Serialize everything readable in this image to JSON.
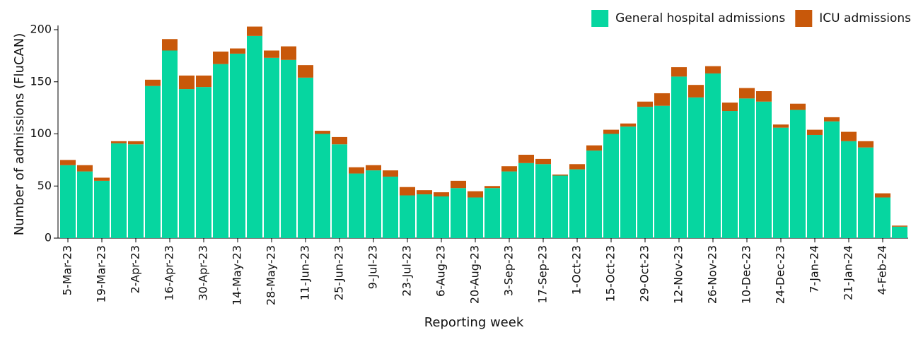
{
  "chart_data": {
    "type": "stacked_bar",
    "y_label": "Number of admissions (FluCAN)",
    "x_label": "Reporting week",
    "categories": [
      "5-Mar-23",
      null,
      "19-Mar-23",
      null,
      "2-Apr-23",
      null,
      "16-Apr-23",
      null,
      "30-Apr-23",
      null,
      "14-May-23",
      null,
      "28-May-23",
      null,
      "11-Jun-23",
      null,
      "25-Jun-23",
      null,
      "9-Jul-23",
      null,
      "23-Jul-23",
      null,
      "6-Aug-23",
      null,
      "20-Aug-23",
      null,
      "3-Sep-23",
      null,
      "17-Sep-23",
      null,
      "1-Oct-23",
      null,
      "15-Oct-23",
      null,
      "29-Oct-23",
      null,
      "12-Nov-23",
      null,
      "26-Nov-23",
      null,
      "10-Dec-23",
      null,
      "24-Dec-23",
      null,
      "7-Jan-24",
      null,
      "21-Jan-24",
      null,
      "4-Feb-24",
      null
    ],
    "series": [
      {
        "name": "General hospital admissions",
        "color": "#06d6a0",
        "values": [
          70,
          64,
          55,
          91,
          90,
          146,
          180,
          143,
          145,
          167,
          177,
          194,
          173,
          171,
          154,
          100,
          90,
          62,
          65,
          59,
          41,
          42,
          40,
          48,
          39,
          48,
          64,
          72,
          71,
          60,
          66,
          84,
          100,
          107,
          126,
          127,
          155,
          135,
          158,
          122,
          134,
          131,
          106,
          123,
          99,
          112,
          93,
          87,
          39,
          11
        ]
      },
      {
        "name": "ICU admissions",
        "color": "#c8580a",
        "values": [
          5,
          6,
          3,
          2,
          3,
          6,
          11,
          13,
          11,
          12,
          5,
          9,
          7,
          13,
          12,
          3,
          7,
          6,
          5,
          6,
          8,
          4,
          4,
          7,
          6,
          2,
          5,
          8,
          5,
          1,
          5,
          5,
          4,
          3,
          5,
          12,
          9,
          12,
          7,
          8,
          10,
          10,
          3,
          6,
          5,
          4,
          9,
          6,
          4,
          1
        ]
      }
    ],
    "ylim": [
      0,
      200
    ],
    "yticks": [
      0,
      50,
      100,
      150,
      200
    ],
    "legend": "top-right"
  }
}
